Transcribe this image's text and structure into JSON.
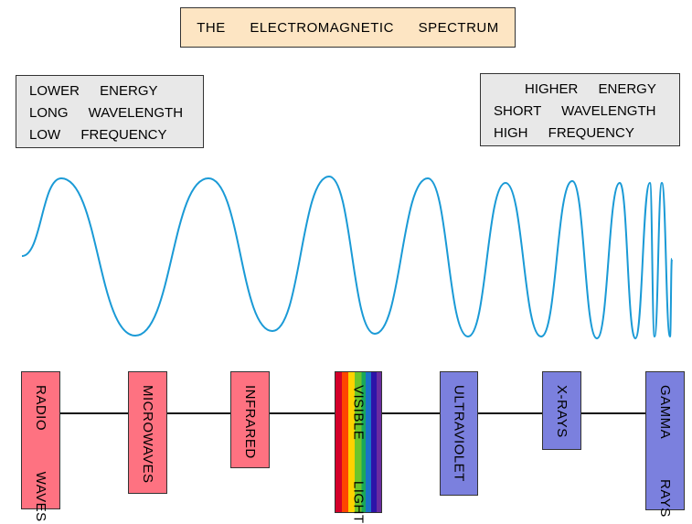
{
  "title": "THE ELECTROMAGNETIC SPECTRUM",
  "left_box": [
    "LOWER ENERGY",
    "LONG WAVELENGTH",
    "LOW FREQUENCY"
  ],
  "right_box": [
    "HIGHER ENERGY",
    "SHORT WAVELENGTH",
    "HIGH FREQUENCY"
  ],
  "bands": [
    {
      "label": "RADIO WAVES",
      "color": "#fe7281"
    },
    {
      "label": "MICROWAVES",
      "color": "#fe7281"
    },
    {
      "label": "INFRARED",
      "color": "#fe7281"
    },
    {
      "label": "VISIBLE LIGHT",
      "color": "rainbow"
    },
    {
      "label": "ULTRAVIOLET",
      "color": "#7b80de"
    },
    {
      "label": "X-RAYS",
      "color": "#7b80de"
    },
    {
      "label": "GAMMA RAYS",
      "color": "#7b80de"
    }
  ],
  "wave_color": "#1a9ad6"
}
